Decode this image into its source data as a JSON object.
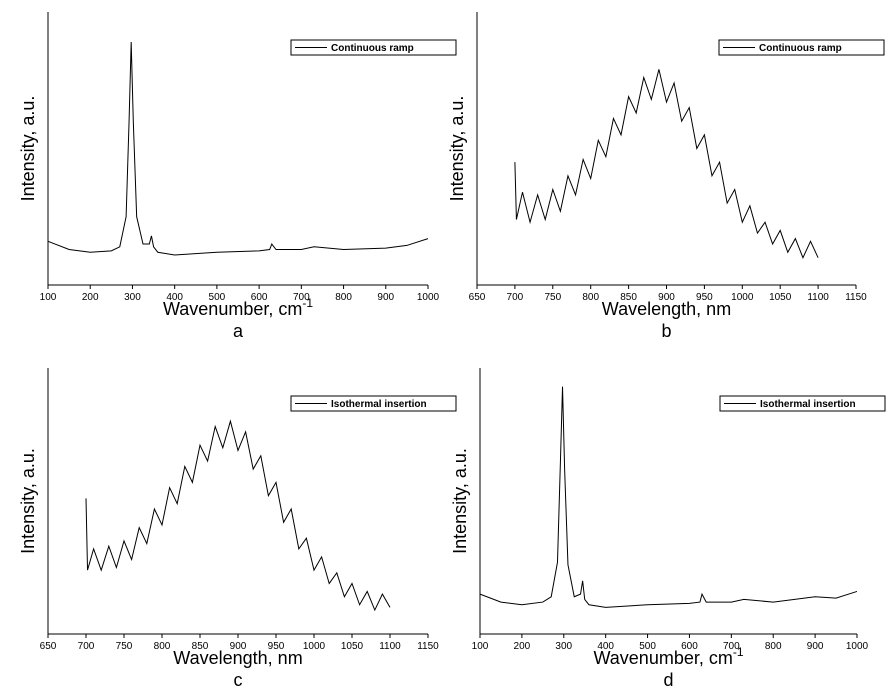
{
  "chart_data": [
    {
      "type": "line",
      "x_label": "Wavenumber, cm",
      "x_label_sup": "-1",
      "y_label": "Intensity, a.u.",
      "caption": "a",
      "legend": "upper right",
      "xlim": [
        100,
        1000
      ],
      "xticks": [
        100,
        200,
        300,
        400,
        500,
        600,
        700,
        800,
        900,
        1000
      ],
      "ylim": [
        0,
        100
      ],
      "x": [
        100,
        150,
        200,
        250,
        270,
        285,
        292,
        297,
        302,
        310,
        325,
        340,
        345,
        350,
        360,
        400,
        500,
        600,
        625,
        630,
        640,
        700,
        730,
        800,
        900,
        950,
        1000
      ],
      "series": [
        {
          "name": "Continuous ramp",
          "color": "#000000",
          "values": [
            16,
            13,
            12,
            12.5,
            14,
            25,
            60,
            89,
            60,
            25,
            15,
            15,
            18,
            14,
            12,
            11,
            12,
            12.5,
            13,
            15,
            13,
            13,
            14,
            13,
            13.5,
            14.5,
            17
          ]
        }
      ]
    },
    {
      "type": "line",
      "x_label": "Wavelength, nm",
      "y_label": "Intensity, a.u.",
      "caption": "b",
      "legend": "upper right",
      "xlim": [
        650,
        1150
      ],
      "xticks": [
        650,
        700,
        750,
        800,
        850,
        900,
        950,
        1000,
        1050,
        1100,
        1150
      ],
      "ylim": [
        0,
        100
      ],
      "x": [
        700,
        702,
        710,
        720,
        730,
        740,
        750,
        760,
        770,
        780,
        790,
        800,
        810,
        820,
        830,
        840,
        850,
        860,
        870,
        880,
        890,
        900,
        910,
        920,
        930,
        940,
        950,
        960,
        970,
        980,
        990,
        1000,
        1010,
        1020,
        1030,
        1040,
        1050,
        1060,
        1070,
        1080,
        1090,
        1100
      ],
      "series": [
        {
          "name": "Continuous ramp",
          "color": "#000000",
          "values": [
            45,
            24,
            34,
            23,
            33,
            24,
            35,
            27,
            40,
            33,
            46,
            39,
            53,
            47,
            61,
            55,
            69,
            63,
            76,
            68,
            79,
            67,
            74,
            60,
            65,
            50,
            55,
            40,
            45,
            30,
            35,
            23,
            29,
            19,
            23,
            15,
            20,
            12,
            17,
            10,
            16,
            10
          ]
        }
      ]
    },
    {
      "type": "line",
      "x_label": "Wavelength, nm",
      "y_label": "Intensity, a.u.",
      "caption": "c",
      "legend": "upper right",
      "xlim": [
        650,
        1150
      ],
      "xticks": [
        650,
        700,
        750,
        800,
        850,
        900,
        950,
        1000,
        1050,
        1100,
        1150
      ],
      "ylim": [
        0,
        100
      ],
      "x": [
        700,
        702,
        710,
        720,
        730,
        740,
        750,
        760,
        770,
        780,
        790,
        800,
        810,
        820,
        830,
        840,
        850,
        860,
        870,
        880,
        890,
        900,
        910,
        920,
        930,
        940,
        950,
        960,
        970,
        980,
        990,
        1000,
        1010,
        1020,
        1030,
        1040,
        1050,
        1060,
        1070,
        1080,
        1090,
        1100
      ],
      "series": [
        {
          "name": "Isothermal insertion",
          "color": "#000000",
          "values": [
            51,
            24,
            32,
            24,
            33,
            25,
            35,
            28,
            40,
            34,
            47,
            41,
            55,
            49,
            63,
            57,
            71,
            65,
            78,
            70,
            80,
            69,
            76,
            62,
            67,
            52,
            57,
            42,
            47,
            32,
            36,
            24,
            29,
            19,
            23,
            14,
            19,
            11,
            16,
            9,
            15,
            10
          ]
        }
      ]
    },
    {
      "type": "line",
      "x_label": "Wavenumber, cm",
      "x_label_sup": "-1",
      "y_label": "Intensity, a.u.",
      "caption": "d",
      "legend": "upper right",
      "xlim": [
        100,
        1000
      ],
      "xticks": [
        100,
        200,
        300,
        400,
        500,
        600,
        700,
        800,
        900,
        1000
      ],
      "ylim": [
        0,
        100
      ],
      "x": [
        100,
        150,
        200,
        250,
        270,
        285,
        292,
        297,
        302,
        310,
        325,
        340,
        345,
        350,
        360,
        400,
        500,
        600,
        625,
        630,
        640,
        700,
        730,
        800,
        900,
        950,
        1000
      ],
      "series": [
        {
          "name": "Isothermal insertion",
          "color": "#000000",
          "values": [
            15,
            12,
            11,
            12,
            14,
            27,
            65,
            93,
            62,
            26,
            14,
            15,
            20,
            13,
            11,
            10,
            11,
            11.5,
            12,
            15,
            12,
            12,
            13,
            12,
            14,
            13.5,
            16
          ]
        }
      ]
    }
  ]
}
